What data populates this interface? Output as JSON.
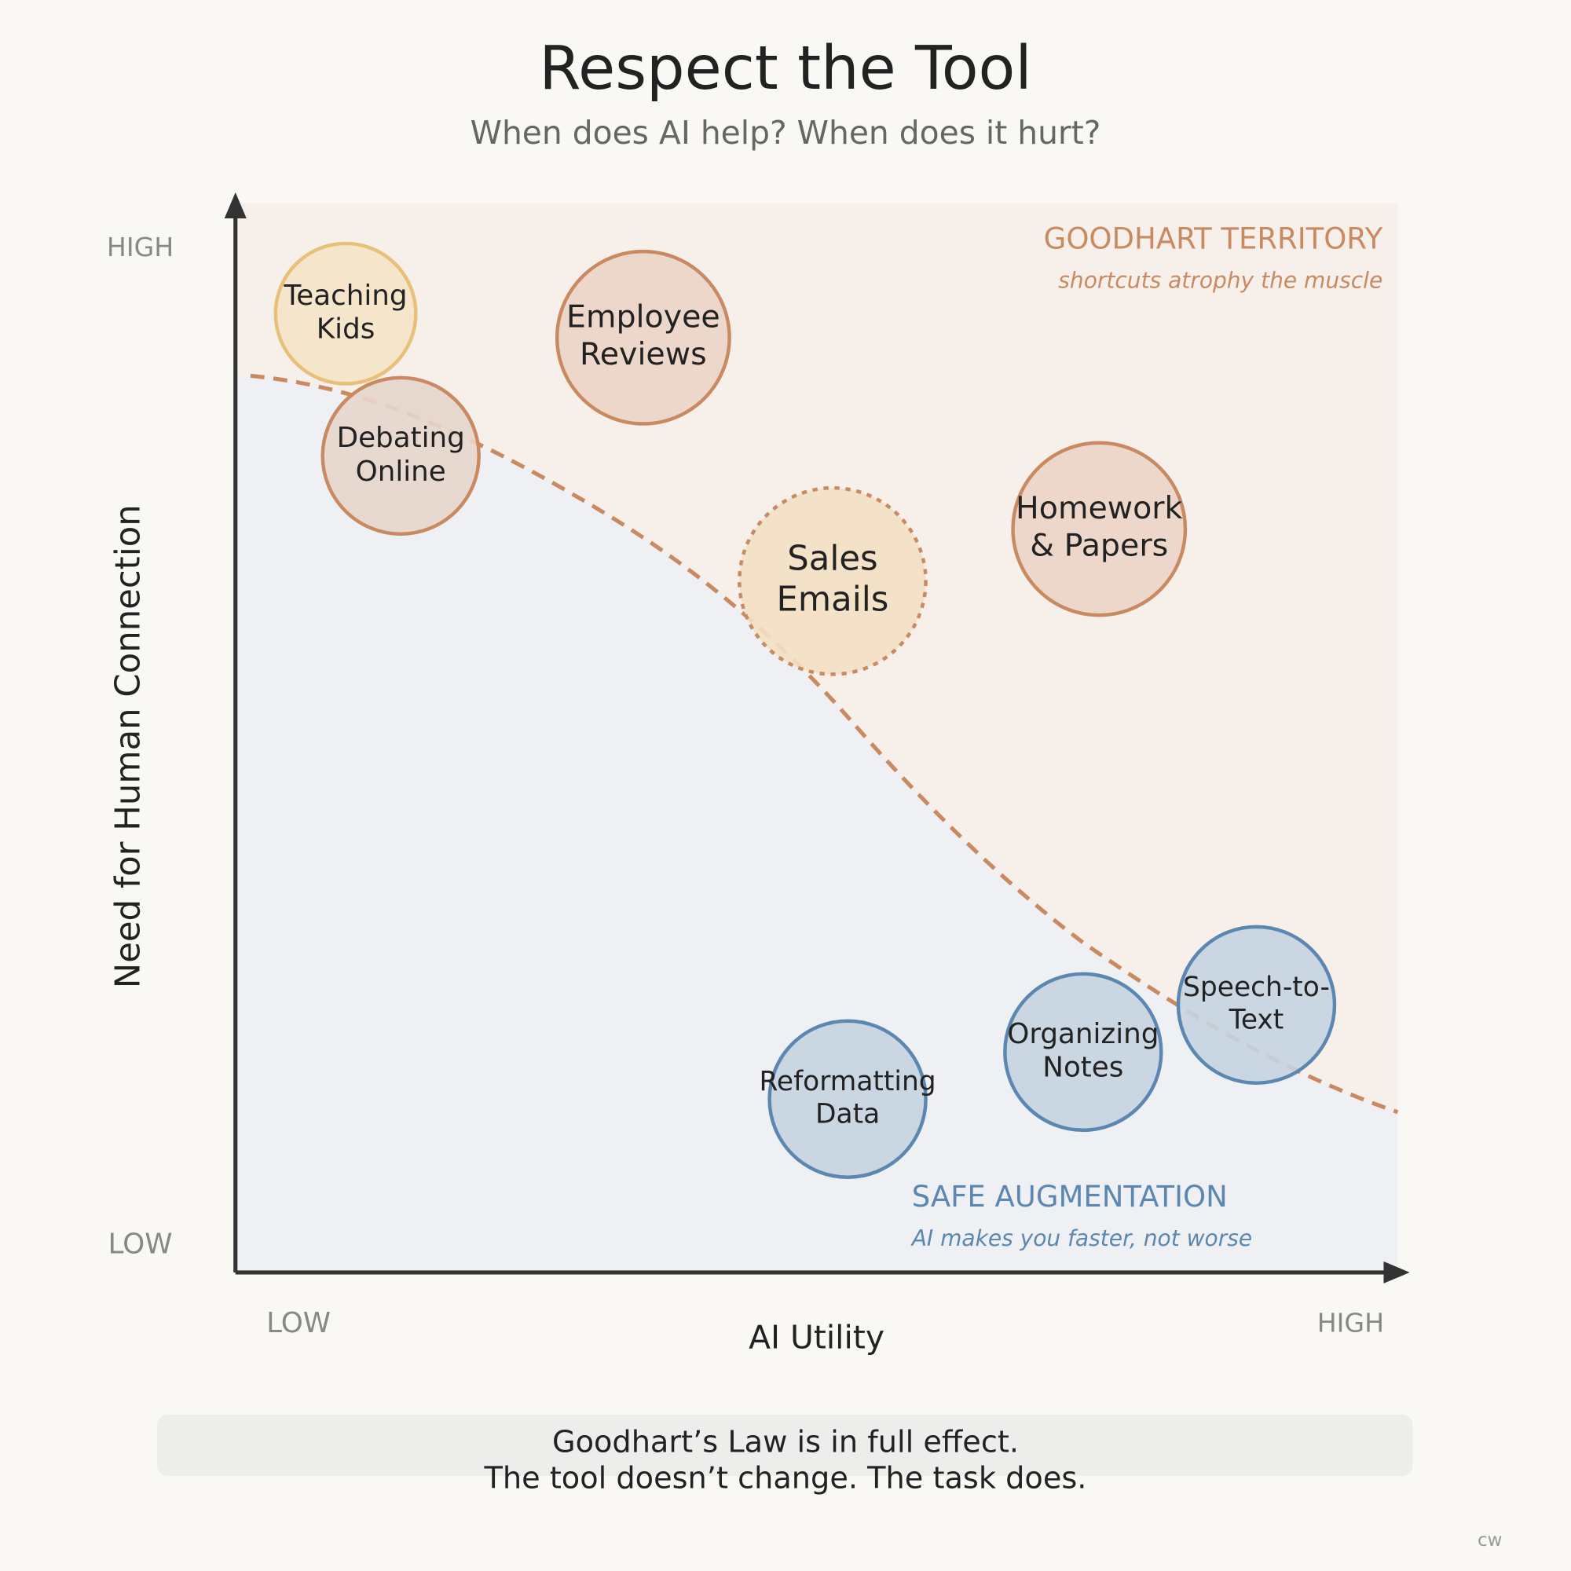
{
  "header": {
    "title": "Respect the Tool",
    "subtitle": "When does AI help? When does it hurt?"
  },
  "y_axis": {
    "label": "Need for Human Connection",
    "high": "HIGH",
    "low": "LOW"
  },
  "x_axis": {
    "label": "AI Utility",
    "low": "LOW",
    "high": "HIGH"
  },
  "regions": [
    {
      "title": "GOODHART TERRITORY",
      "subtitle": "shortcuts atrophy the muscle"
    },
    {
      "title": "SAFE AUGMENTATION",
      "subtitle": "AI makes you faster, not worse"
    }
  ],
  "nodes": [
    {
      "lines": [
        "Teaching",
        "Kids"
      ]
    },
    {
      "lines": [
        "Employee",
        "Reviews"
      ]
    },
    {
      "lines": [
        "Debating",
        "Online"
      ]
    },
    {
      "lines": [
        "Sales",
        "Emails"
      ]
    },
    {
      "lines": [
        "Homework",
        "& Papers"
      ]
    },
    {
      "lines": [
        "Reformatting",
        "Data"
      ]
    },
    {
      "lines": [
        "Organizing",
        "Notes"
      ]
    },
    {
      "lines": [
        "Speech-to-",
        "Text"
      ]
    }
  ],
  "footer": {
    "lines": [
      "Goodhart’s Law is in full effect.",
      "The tool doesn’t change. The task does."
    ]
  },
  "signature": "cw"
}
